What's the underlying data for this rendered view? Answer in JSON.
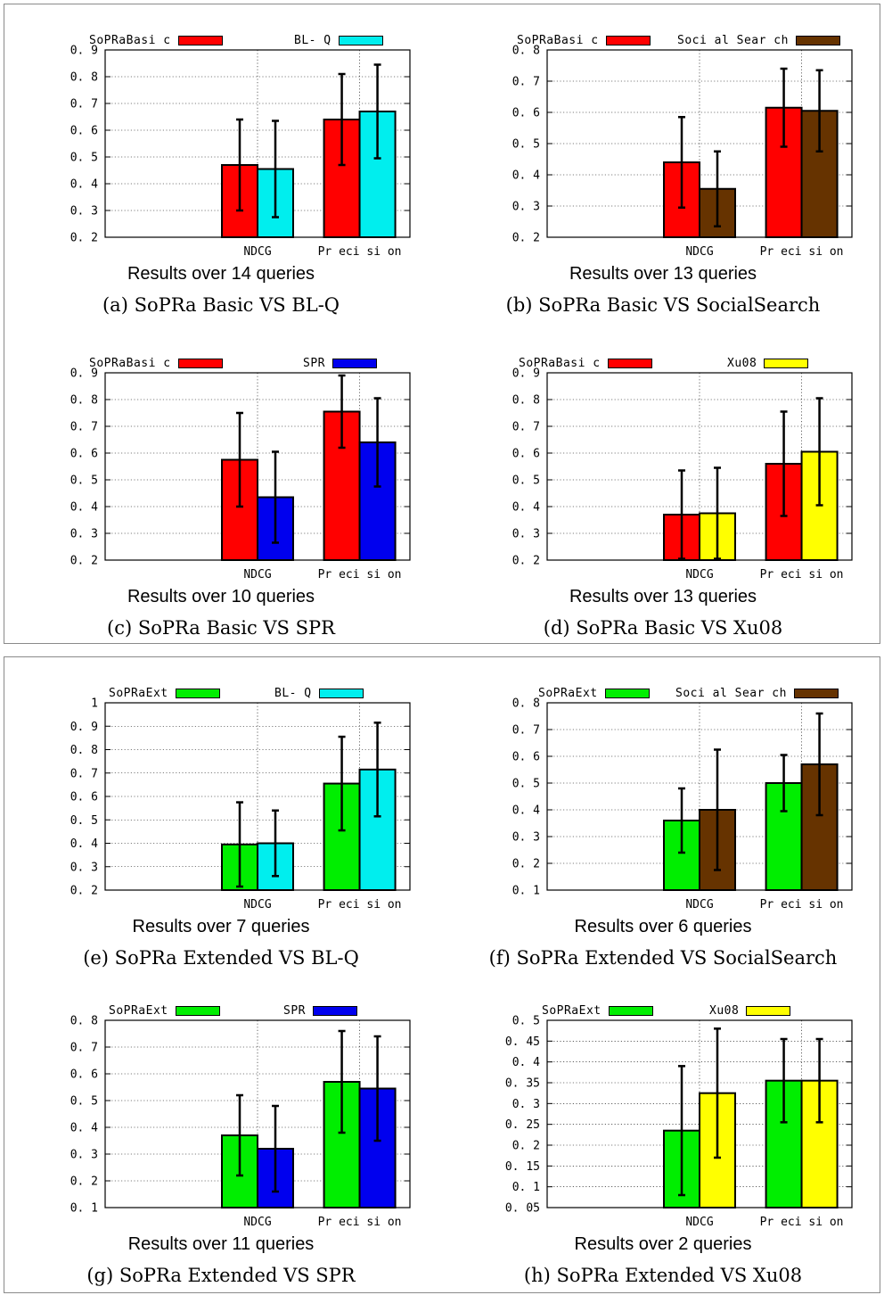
{
  "colors": {
    "sopra_basic": "#ff0000",
    "sopra_ext": "#00ee00",
    "blq": "#00eeee",
    "social_search": "#663300",
    "spr": "#0000ee",
    "xu08": "#ffff00",
    "frame": "#8a8a8a"
  },
  "chart_data": [
    {
      "id": "a",
      "type": "bar",
      "caption": "(a) SoPRa Basic VS BL-Q",
      "subtitle": "Results over 14 queries",
      "categories": [
        "NDCG",
        "Precision"
      ],
      "ylim": [
        0.2,
        0.9
      ],
      "yticks": [
        0.2,
        0.3,
        0.4,
        0.5,
        0.6,
        0.7,
        0.8,
        0.9
      ],
      "ytick_labels": [
        "0. 2",
        "0. 3",
        "0. 4",
        "0. 5",
        "0. 6",
        "0. 7",
        "0. 8",
        "0. 9"
      ],
      "xtick_labels": [
        "NDCG",
        "Pr eci si on"
      ],
      "grid": true,
      "legend": "top",
      "series": [
        {
          "name": "SoPRaBasi c",
          "color": "#ff0000",
          "values": [
            0.47,
            0.64
          ],
          "err": [
            0.17,
            0.17
          ]
        },
        {
          "name": "BL- Q",
          "color": "#00eeee",
          "values": [
            0.455,
            0.67
          ],
          "err": [
            0.18,
            0.175
          ]
        }
      ]
    },
    {
      "id": "b",
      "type": "bar",
      "caption": "(b) SoPRa Basic VS SocialSearch",
      "subtitle": "Results over 13 queries",
      "categories": [
        "NDCG",
        "Precision"
      ],
      "ylim": [
        0.2,
        0.8
      ],
      "yticks": [
        0.2,
        0.3,
        0.4,
        0.5,
        0.6,
        0.7,
        0.8
      ],
      "ytick_labels": [
        "0. 2",
        "0. 3",
        "0. 4",
        "0. 5",
        "0. 6",
        "0. 7",
        "0. 8"
      ],
      "xtick_labels": [
        "NDCG",
        "Pr eci si on"
      ],
      "grid": true,
      "legend": "top",
      "series": [
        {
          "name": "SoPRaBasi c",
          "color": "#ff0000",
          "values": [
            0.44,
            0.615
          ],
          "err": [
            0.145,
            0.125
          ]
        },
        {
          "name": "Soci al Sear ch",
          "color": "#663300",
          "values": [
            0.355,
            0.605
          ],
          "err": [
            0.12,
            0.13
          ]
        }
      ]
    },
    {
      "id": "c",
      "type": "bar",
      "caption": "(c) SoPRa Basic VS SPR",
      "subtitle": "Results over 10 queries",
      "categories": [
        "NDCG",
        "Precision"
      ],
      "ylim": [
        0.2,
        0.9
      ],
      "yticks": [
        0.2,
        0.3,
        0.4,
        0.5,
        0.6,
        0.7,
        0.8,
        0.9
      ],
      "ytick_labels": [
        "0. 2",
        "0. 3",
        "0. 4",
        "0. 5",
        "0. 6",
        "0. 7",
        "0. 8",
        "0. 9"
      ],
      "xtick_labels": [
        "NDCG",
        "Pr eci si on"
      ],
      "grid": true,
      "legend": "top",
      "series": [
        {
          "name": "SoPRaBasi c",
          "color": "#ff0000",
          "values": [
            0.575,
            0.755
          ],
          "err": [
            0.175,
            0.135
          ]
        },
        {
          "name": "SPR",
          "color": "#0000ee",
          "values": [
            0.435,
            0.64
          ],
          "err": [
            0.17,
            0.165
          ]
        }
      ]
    },
    {
      "id": "d",
      "type": "bar",
      "caption": "(d) SoPRa Basic VS Xu08",
      "subtitle": "Results over 13 queries",
      "categories": [
        "NDCG",
        "Precision"
      ],
      "ylim": [
        0.2,
        0.9
      ],
      "yticks": [
        0.2,
        0.3,
        0.4,
        0.5,
        0.6,
        0.7,
        0.8,
        0.9
      ],
      "ytick_labels": [
        "0. 2",
        "0. 3",
        "0. 4",
        "0. 5",
        "0. 6",
        "0. 7",
        "0. 8",
        "0. 9"
      ],
      "xtick_labels": [
        "NDCG",
        "Pr eci si on"
      ],
      "grid": true,
      "legend": "top",
      "series": [
        {
          "name": "SoPRaBasi c",
          "color": "#ff0000",
          "values": [
            0.37,
            0.56
          ],
          "err": [
            0.165,
            0.195
          ]
        },
        {
          "name": "Xu08",
          "color": "#ffff00",
          "values": [
            0.375,
            0.605
          ],
          "err": [
            0.17,
            0.2
          ]
        }
      ]
    },
    {
      "id": "e",
      "type": "bar",
      "caption": "(e) SoPRa Extended VS BL-Q",
      "subtitle": "Results over 7 queries",
      "categories": [
        "NDCG",
        "Precision"
      ],
      "ylim": [
        0.2,
        1.0
      ],
      "yticks": [
        0.2,
        0.3,
        0.4,
        0.5,
        0.6,
        0.7,
        0.8,
        0.9,
        1.0
      ],
      "ytick_labels": [
        "0. 2",
        "0. 3",
        "0. 4",
        "0. 5",
        "0. 6",
        "0. 7",
        "0. 8",
        "0. 9",
        "1"
      ],
      "xtick_labels": [
        "NDCG",
        "Pr eci si on"
      ],
      "grid": true,
      "legend": "top",
      "series": [
        {
          "name": "SoPRaExt",
          "color": "#00ee00",
          "values": [
            0.395,
            0.655
          ],
          "err": [
            0.18,
            0.2
          ]
        },
        {
          "name": "BL- Q",
          "color": "#00eeee",
          "values": [
            0.4,
            0.715
          ],
          "err": [
            0.14,
            0.2
          ]
        }
      ]
    },
    {
      "id": "f",
      "type": "bar",
      "caption": "(f) SoPRa Extended VS SocialSearch",
      "subtitle": "Results over 6 queries",
      "categories": [
        "NDCG",
        "Precision"
      ],
      "ylim": [
        0.1,
        0.8
      ],
      "yticks": [
        0.1,
        0.2,
        0.3,
        0.4,
        0.5,
        0.6,
        0.7,
        0.8
      ],
      "ytick_labels": [
        "0. 1",
        "0. 2",
        "0. 3",
        "0. 4",
        "0. 5",
        "0. 6",
        "0. 7",
        "0. 8"
      ],
      "xtick_labels": [
        "NDCG",
        "Pr eci si on"
      ],
      "grid": true,
      "legend": "top",
      "series": [
        {
          "name": "SoPRaExt",
          "color": "#00ee00",
          "values": [
            0.36,
            0.5
          ],
          "err": [
            0.12,
            0.105
          ]
        },
        {
          "name": "Soci al Sear ch",
          "color": "#663300",
          "values": [
            0.4,
            0.57
          ],
          "err": [
            0.225,
            0.19
          ]
        }
      ]
    },
    {
      "id": "g",
      "type": "bar",
      "caption": "(g) SoPRa Extended VS SPR",
      "subtitle": "Results over 11 queries",
      "categories": [
        "NDCG",
        "Precision"
      ],
      "ylim": [
        0.1,
        0.8
      ],
      "yticks": [
        0.1,
        0.2,
        0.3,
        0.4,
        0.5,
        0.6,
        0.7,
        0.8
      ],
      "ytick_labels": [
        "0. 1",
        "0. 2",
        "0. 3",
        "0. 4",
        "0. 5",
        "0. 6",
        "0. 7",
        "0. 8"
      ],
      "xtick_labels": [
        "NDCG",
        "Pr eci si on"
      ],
      "grid": true,
      "legend": "top",
      "series": [
        {
          "name": "SoPRaExt",
          "color": "#00ee00",
          "values": [
            0.37,
            0.57
          ],
          "err": [
            0.15,
            0.19
          ]
        },
        {
          "name": "SPR",
          "color": "#0000ee",
          "values": [
            0.32,
            0.545
          ],
          "err": [
            0.16,
            0.195
          ]
        }
      ]
    },
    {
      "id": "h",
      "type": "bar",
      "caption": "(h) SoPRa Extended VS Xu08",
      "subtitle": "Results over 2 queries",
      "categories": [
        "NDCG",
        "Precision"
      ],
      "ylim": [
        0.05,
        0.5
      ],
      "yticks": [
        0.05,
        0.1,
        0.15,
        0.2,
        0.25,
        0.3,
        0.35,
        0.4,
        0.45,
        0.5
      ],
      "ytick_labels": [
        "0. 05",
        "0. 1",
        "0. 15",
        "0. 2",
        "0. 25",
        "0. 3",
        "0. 35",
        "0. 4",
        "0. 45",
        "0. 5"
      ],
      "xtick_labels": [
        "NDCG",
        "Pr eci si on"
      ],
      "grid": true,
      "legend": "top",
      "series": [
        {
          "name": "SoPRaExt",
          "color": "#00ee00",
          "values": [
            0.235,
            0.355
          ],
          "err": [
            0.155,
            0.1
          ]
        },
        {
          "name": "Xu08",
          "color": "#ffff00",
          "values": [
            0.325,
            0.355
          ],
          "err": [
            0.155,
            0.1
          ]
        }
      ]
    }
  ]
}
